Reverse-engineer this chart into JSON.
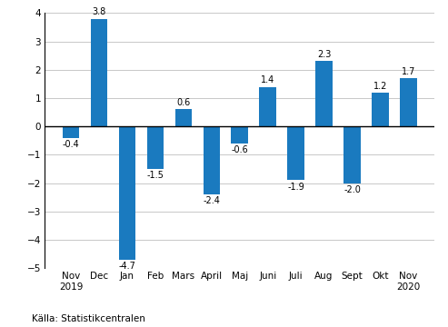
{
  "categories": [
    "Nov\n2019",
    "Dec",
    "Jan",
    "Feb",
    "Mars",
    "April",
    "Maj",
    "Juni",
    "Juli",
    "Aug",
    "Sept",
    "Okt",
    "Nov\n2020"
  ],
  "values": [
    -0.4,
    3.8,
    -4.7,
    -1.5,
    0.6,
    -2.4,
    -0.6,
    1.4,
    -1.9,
    2.3,
    -2.0,
    1.2,
    1.7
  ],
  "bar_color": "#1a7abf",
  "ylim": [
    -5,
    4
  ],
  "yticks": [
    -5,
    -4,
    -3,
    -2,
    -1,
    0,
    1,
    2,
    3,
    4
  ],
  "source_text": "Källa: Statistikcentralen",
  "background_color": "#ffffff",
  "grid_color": "#c8c8c8",
  "label_fontsize": 7,
  "tick_fontsize": 7.5,
  "source_fontsize": 7.5
}
